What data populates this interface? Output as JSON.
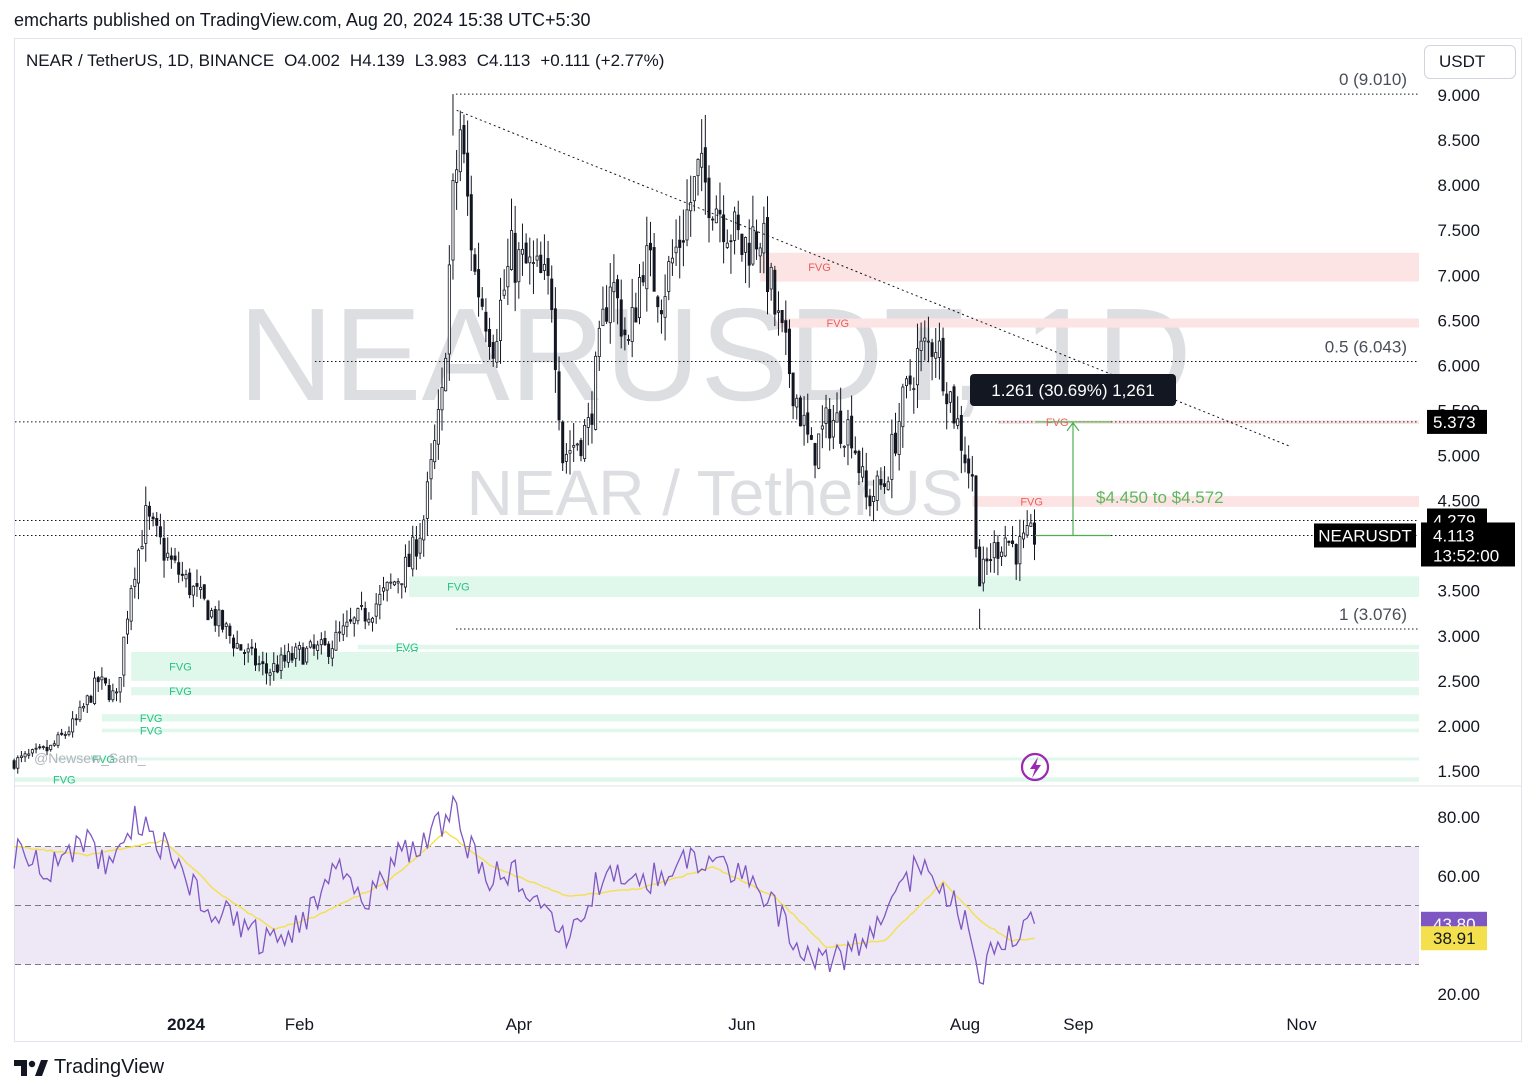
{
  "header": {
    "credit": "emcharts published on TradingView.com, Aug 20, 2024 15:38 UTC+5:30",
    "symbol_line": "NEAR / TetherUS, 1D, BINANCE",
    "open": "O4.002",
    "high": "H4.139",
    "low": "L3.983",
    "close": "C4.113",
    "change": "+0.111 (+2.77%)",
    "currency_button": "USDT"
  },
  "watermark": {
    "big": "NEARUSDT, 1D",
    "small": "NEAR / TetherUS",
    "author": "@Newsew_Sam_"
  },
  "footer": {
    "brand": "TradingView"
  },
  "colors": {
    "candle": "#131722",
    "fvg_bull": "#e0f7ec",
    "fvg_bull_text": "#26c281",
    "fvg_bear": "#fde4e4",
    "fvg_bear_text": "#f05a5a",
    "rsi": "#7e57c2",
    "rsi_ma": "#f4e04d",
    "rsi_band": "#ede7f6",
    "measure_green": "#4caf50",
    "callout": "#131722"
  },
  "chart_data": {
    "type": "candlestick",
    "title": "NEAR / TetherUS, 1D, BINANCE",
    "y_axis": {
      "ylim": [
        1.25,
        9.25
      ],
      "ticks": [
        "9.000",
        "8.500",
        "8.000",
        "7.500",
        "7.000",
        "6.500",
        "6.000",
        "5.500",
        "5.000",
        "4.500",
        "4.000",
        "3.500",
        "3.000",
        "2.500",
        "2.000",
        "1.500"
      ]
    },
    "x_axis": {
      "ticks": [
        "2024",
        "Feb",
        "Apr",
        "Jun",
        "Aug",
        "Sep",
        "Nov"
      ]
    },
    "price_anchors": [
      {
        "date": "2023-11-15",
        "value": 1.6
      },
      {
        "date": "2023-11-25",
        "value": 1.75
      },
      {
        "date": "2023-12-02",
        "value": 2.05
      },
      {
        "date": "2023-12-08",
        "value": 2.5
      },
      {
        "date": "2023-12-13",
        "value": 2.3
      },
      {
        "date": "2023-12-17",
        "value": 3.6
      },
      {
        "date": "2023-12-21",
        "value": 4.3
      },
      {
        "date": "2023-12-28",
        "value": 3.8
      },
      {
        "date": "2024-01-05",
        "value": 3.4
      },
      {
        "date": "2024-01-15",
        "value": 2.9
      },
      {
        "date": "2024-01-23",
        "value": 2.6
      },
      {
        "date": "2024-02-01",
        "value": 2.8
      },
      {
        "date": "2024-02-08",
        "value": 2.85
      },
      {
        "date": "2024-02-15",
        "value": 3.1
      },
      {
        "date": "2024-02-23",
        "value": 3.4
      },
      {
        "date": "2024-03-02",
        "value": 3.8
      },
      {
        "date": "2024-03-06",
        "value": 4.3
      },
      {
        "date": "2024-03-11",
        "value": 5.6
      },
      {
        "date": "2024-03-14",
        "value": 7.8
      },
      {
        "date": "2024-03-16",
        "value": 8.6
      },
      {
        "date": "2024-03-20",
        "value": 7.0
      },
      {
        "date": "2024-03-25",
        "value": 6.3
      },
      {
        "date": "2024-03-30",
        "value": 7.2
      },
      {
        "date": "2024-04-06",
        "value": 7.0
      },
      {
        "date": "2024-04-10",
        "value": 6.8
      },
      {
        "date": "2024-04-13",
        "value": 5.0
      },
      {
        "date": "2024-04-20",
        "value": 5.3
      },
      {
        "date": "2024-04-26",
        "value": 7.0
      },
      {
        "date": "2024-05-01",
        "value": 6.2
      },
      {
        "date": "2024-05-05",
        "value": 7.2
      },
      {
        "date": "2024-05-10",
        "value": 6.8
      },
      {
        "date": "2024-05-15",
        "value": 7.4
      },
      {
        "date": "2024-05-20",
        "value": 8.1
      },
      {
        "date": "2024-05-24",
        "value": 7.9
      },
      {
        "date": "2024-05-28",
        "value": 7.6
      },
      {
        "date": "2024-06-01",
        "value": 7.3
      },
      {
        "date": "2024-06-06",
        "value": 7.5
      },
      {
        "date": "2024-06-10",
        "value": 6.6
      },
      {
        "date": "2024-06-15",
        "value": 5.8
      },
      {
        "date": "2024-06-20",
        "value": 5.0
      },
      {
        "date": "2024-06-25",
        "value": 5.4
      },
      {
        "date": "2024-07-01",
        "value": 5.3
      },
      {
        "date": "2024-07-05",
        "value": 4.5
      },
      {
        "date": "2024-07-10",
        "value": 4.7
      },
      {
        "date": "2024-07-14",
        "value": 5.4
      },
      {
        "date": "2024-07-19",
        "value": 6.1
      },
      {
        "date": "2024-07-24",
        "value": 6.3
      },
      {
        "date": "2024-07-29",
        "value": 5.5
      },
      {
        "date": "2024-08-03",
        "value": 4.7
      },
      {
        "date": "2024-08-05",
        "value": 3.6
      },
      {
        "date": "2024-08-08",
        "value": 3.9
      },
      {
        "date": "2024-08-12",
        "value": 4.1
      },
      {
        "date": "2024-08-15",
        "value": 3.95
      },
      {
        "date": "2024-08-20",
        "value": 4.113
      }
    ],
    "price_labels": [
      {
        "value": 5.373,
        "text": "5.373",
        "style": "black"
      },
      {
        "value": 4.279,
        "text": "4.279",
        "style": "black"
      },
      {
        "value": 4.113,
        "text": "4.113",
        "style": "black",
        "symbol": "NEARUSDT",
        "countdown": "13:52:00"
      }
    ],
    "fib_levels": [
      {
        "label": "0 (9.010)",
        "value": 9.01
      },
      {
        "label": "0.5 (6.043)",
        "value": 6.043
      },
      {
        "label": "1 (3.076)",
        "value": 3.076
      }
    ],
    "horizontal_lines": [
      5.373,
      4.279,
      4.113
    ],
    "trendline": {
      "start": {
        "date": "2024-03-15",
        "value": 8.83
      },
      "end": {
        "date": "2024-10-29",
        "value": 5.1
      }
    },
    "fvg_zones": [
      {
        "kind": "bear",
        "label": "FVG",
        "from": "2024-06-06",
        "y1": 6.93,
        "y2": 7.25
      },
      {
        "kind": "bear",
        "label": "FVG",
        "from": "2024-06-11",
        "y1": 6.42,
        "y2": 6.52
      },
      {
        "kind": "bear",
        "label": "FVG",
        "from": "2024-08-03",
        "y1": 4.43,
        "y2": 4.55
      },
      {
        "kind": "bear",
        "label": "FVG",
        "from": "2024-08-10",
        "y1": 5.35,
        "y2": 5.39
      },
      {
        "kind": "bull",
        "label": "FVG",
        "from": "2024-03-02",
        "y1": 3.43,
        "y2": 3.66
      },
      {
        "kind": "bull",
        "label": "FVG",
        "from": "2024-02-17",
        "y1": 2.85,
        "y2": 2.9
      },
      {
        "kind": "bull",
        "label": "FVG",
        "from": "2024-02-17",
        "y1": 2.79,
        "y2": 2.82
      },
      {
        "kind": "bull",
        "label": "FVG",
        "from": "2023-12-17",
        "y1": 2.5,
        "y2": 2.82
      },
      {
        "kind": "bull",
        "label": "FVG",
        "from": "2023-12-17",
        "y1": 2.34,
        "y2": 2.43
      },
      {
        "kind": "bull",
        "label": "FVG",
        "from": "2023-12-09",
        "y1": 2.05,
        "y2": 2.13
      },
      {
        "kind": "bull",
        "label": "FVG",
        "from": "2023-12-09",
        "y1": 1.93,
        "y2": 1.97
      },
      {
        "kind": "bull",
        "label": "FVG",
        "from": "2023-11-26",
        "y1": 1.63,
        "y2": 1.65
      },
      {
        "kind": "bull",
        "label": "FVG",
        "from": "2023-11-15",
        "y1": 1.38,
        "y2": 1.43
      }
    ],
    "measure": {
      "from": 4.113,
      "to": 5.373,
      "label": "1.261 (30.69%) 1,261"
    },
    "annotation": {
      "text": "$4.450 to $4.572"
    },
    "rsi": {
      "ylim": [
        15,
        90
      ],
      "ticks": [
        "80.00",
        "60.00",
        "20.00"
      ],
      "levels": [
        70,
        50,
        30
      ],
      "value_label": "43.80",
      "ma_label": "38.91",
      "rsi_anchors": [
        {
          "date": "2023-11-15",
          "value": 68
        },
        {
          "date": "2023-11-25",
          "value": 63
        },
        {
          "date": "2023-12-05",
          "value": 72
        },
        {
          "date": "2023-12-12",
          "value": 62
        },
        {
          "date": "2023-12-18",
          "value": 80
        },
        {
          "date": "2023-12-26",
          "value": 70
        },
        {
          "date": "2024-01-05",
          "value": 52
        },
        {
          "date": "2024-01-15",
          "value": 45
        },
        {
          "date": "2024-01-22",
          "value": 38
        },
        {
          "date": "2024-02-01",
          "value": 42
        },
        {
          "date": "2024-02-10",
          "value": 64
        },
        {
          "date": "2024-02-20",
          "value": 52
        },
        {
          "date": "2024-02-28",
          "value": 66
        },
        {
          "date": "2024-03-06",
          "value": 72
        },
        {
          "date": "2024-03-14",
          "value": 82
        },
        {
          "date": "2024-03-22",
          "value": 60
        },
        {
          "date": "2024-04-01",
          "value": 60
        },
        {
          "date": "2024-04-13",
          "value": 38
        },
        {
          "date": "2024-04-26",
          "value": 64
        },
        {
          "date": "2024-05-05",
          "value": 57
        },
        {
          "date": "2024-05-15",
          "value": 64
        },
        {
          "date": "2024-05-24",
          "value": 66
        },
        {
          "date": "2024-06-05",
          "value": 58
        },
        {
          "date": "2024-06-15",
          "value": 40
        },
        {
          "date": "2024-06-24",
          "value": 30
        },
        {
          "date": "2024-07-05",
          "value": 37
        },
        {
          "date": "2024-07-10",
          "value": 44
        },
        {
          "date": "2024-07-20",
          "value": 66
        },
        {
          "date": "2024-07-26",
          "value": 56
        },
        {
          "date": "2024-08-01",
          "value": 44
        },
        {
          "date": "2024-08-05",
          "value": 25
        },
        {
          "date": "2024-08-10",
          "value": 41
        },
        {
          "date": "2024-08-15",
          "value": 38
        },
        {
          "date": "2024-08-20",
          "value": 43.8
        }
      ],
      "ma_anchors": [
        {
          "date": "2023-11-15",
          "value": 70
        },
        {
          "date": "2023-12-05",
          "value": 67
        },
        {
          "date": "2023-12-26",
          "value": 72
        },
        {
          "date": "2024-01-10",
          "value": 54
        },
        {
          "date": "2024-01-25",
          "value": 42
        },
        {
          "date": "2024-02-05",
          "value": 46
        },
        {
          "date": "2024-02-25",
          "value": 58
        },
        {
          "date": "2024-03-12",
          "value": 75
        },
        {
          "date": "2024-03-25",
          "value": 63
        },
        {
          "date": "2024-04-15",
          "value": 53
        },
        {
          "date": "2024-05-05",
          "value": 56
        },
        {
          "date": "2024-05-24",
          "value": 63
        },
        {
          "date": "2024-06-10",
          "value": 53
        },
        {
          "date": "2024-06-24",
          "value": 36
        },
        {
          "date": "2024-07-10",
          "value": 38
        },
        {
          "date": "2024-07-26",
          "value": 58
        },
        {
          "date": "2024-08-06",
          "value": 44
        },
        {
          "date": "2024-08-14",
          "value": 38
        },
        {
          "date": "2024-08-20",
          "value": 38.9
        }
      ]
    }
  }
}
